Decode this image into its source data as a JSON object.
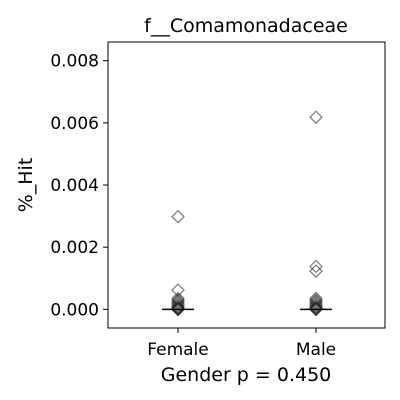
{
  "chart_data": {
    "type": "scatter",
    "title": "f__Comamonadaceae",
    "xlabel": "Gender p = 0.450",
    "ylabel": "%_Hit",
    "categories": [
      "Female",
      "Male"
    ],
    "ylim": [
      -0.0006,
      0.0086
    ],
    "yticks": [
      0.0,
      0.002,
      0.004,
      0.006,
      0.008
    ],
    "ytick_labels": [
      "0.000",
      "0.002",
      "0.004",
      "0.006",
      "0.008"
    ],
    "grid": false,
    "marker": "diamond-open",
    "series": [
      {
        "category": "Female",
        "median": 0.0,
        "values": [
          0.00298,
          0.00062,
          0.00035,
          0.0003,
          0.00025,
          0.0002,
          0.00015,
          0.0001,
          7e-05,
          4e-05,
          2e-05,
          0.0,
          0.0,
          0.0
        ]
      },
      {
        "category": "Male",
        "median": 0.0,
        "values": [
          0.00618,
          0.00138,
          0.00123,
          0.00035,
          0.0003,
          0.00025,
          0.0002,
          0.00015,
          0.0001,
          7e-05,
          4e-05,
          2e-05,
          0.0,
          0.0
        ]
      }
    ]
  }
}
